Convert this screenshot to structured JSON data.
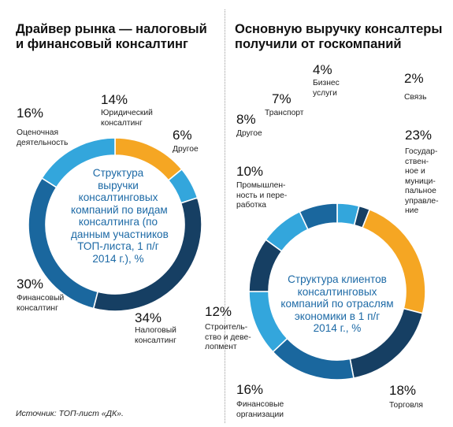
{
  "left": {
    "title_lines": [
      "Драйвер рынка — налоговый",
      "и финансовый консалтинг"
    ]
  },
  "right": {
    "title_lines": [
      "Основную выручку консалтеры",
      "получили от госкомпаний"
    ]
  },
  "source": "Источник: ТОП-лист «ДК».",
  "chart_data": [
    {
      "type": "pie",
      "center_lines": [
        "Структура",
        "выручки",
        "консалтинговых",
        "компаний по видам",
        "консалтинга (по",
        "данным участников",
        "ТОП-листа, 1 п/г",
        "2014 г.), %"
      ],
      "categories": [
        "Юридический консалтинг",
        "Другое",
        "Налоговый консалтинг",
        "Финансовый консалтинг",
        "Оценочная деятельность"
      ],
      "values": [
        14,
        6,
        34,
        30,
        16
      ],
      "colors": [
        "#f5a623",
        "#33a6dc",
        "#163f63",
        "#1a679e",
        "#33a6dc"
      ],
      "pct_labels": [
        "14%",
        "6%",
        "34%",
        "30%",
        "16%"
      ],
      "label_lines": [
        [
          "Юридический",
          "консалтинг"
        ],
        [
          "Другое"
        ],
        [
          "Налоговый",
          "консалтинг"
        ],
        [
          "Финансовый",
          "консалтинг"
        ],
        [
          "Оценочная",
          "деятельность"
        ]
      ]
    },
    {
      "type": "pie",
      "center_lines": [
        "Структура клиентов",
        "консалтинговых",
        "компаний по отраслям",
        "экономики в 1 п/г",
        "2014 г., %"
      ],
      "categories": [
        "Бизнес услуги",
        "Связь",
        "Государственные и муниципальное управление",
        "Торговля",
        "Финансовые организации",
        "Строительство и девелопмент",
        "Промышленность и переработка",
        "Другое",
        "Транспорт"
      ],
      "values": [
        4,
        2,
        23,
        18,
        16,
        12,
        10,
        8,
        7
      ],
      "colors": [
        "#33a6dc",
        "#163f63",
        "#f5a623",
        "#163f63",
        "#1a679e",
        "#33a6dc",
        "#163f63",
        "#33a6dc",
        "#1a679e"
      ],
      "pct_labels": [
        "4%",
        "2%",
        "23%",
        "18%",
        "16%",
        "12%",
        "10%",
        "8%",
        "7%"
      ],
      "label_lines": [
        [
          "Бизнес",
          "услуги"
        ],
        [
          "Связь"
        ],
        [
          "Государ-",
          "ствен-",
          "ное и",
          "муници-",
          "пальное",
          "управле-",
          "ние"
        ],
        [
          "Торговля"
        ],
        [
          "Финансовые",
          "организации"
        ],
        [
          "Строитель-",
          "ство и деве-",
          "лопмент"
        ],
        [
          "Промышлен-",
          "ность и пере-",
          "работка"
        ],
        [
          "Другое"
        ],
        [
          "Транспорт"
        ]
      ]
    }
  ]
}
